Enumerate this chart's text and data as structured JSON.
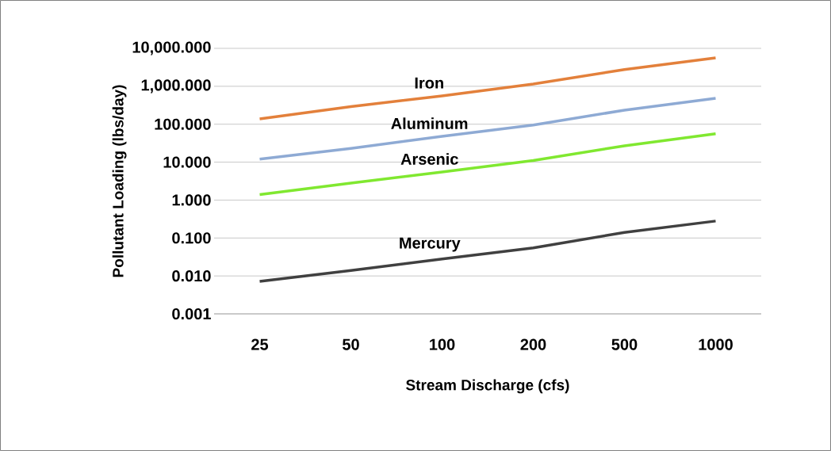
{
  "chart_data": {
    "type": "line",
    "xlabel": "Stream Discharge (cfs)",
    "ylabel": "Pollutant  Loading (lbs/day)",
    "categories": [
      "25",
      "50",
      "100",
      "200",
      "500",
      "1000"
    ],
    "series": [
      {
        "name": "Iron",
        "color": "#e3803b",
        "values": [
          138,
          290,
          560,
          1150,
          2750,
          5600
        ]
      },
      {
        "name": "Aluminum",
        "color": "#8eaad4",
        "values": [
          12,
          23,
          48,
          95,
          235,
          480
        ]
      },
      {
        "name": "Arsenic",
        "color": "#80e830",
        "values": [
          1.4,
          2.8,
          5.5,
          11,
          27,
          56
        ]
      },
      {
        "name": "Mercury",
        "color": "#404040",
        "values": [
          0.0072,
          0.014,
          0.028,
          0.055,
          0.14,
          0.28
        ]
      }
    ],
    "log": "y",
    "ylim": [
      0.001,
      10000
    ],
    "yticks": [
      {
        "value": 0.001,
        "label": "0.001"
      },
      {
        "value": 0.01,
        "label": "0.010"
      },
      {
        "value": 0.1,
        "label": "0.100"
      },
      {
        "value": 1,
        "label": "1.000"
      },
      {
        "value": 10,
        "label": "10.000"
      },
      {
        "value": 100,
        "label": "100.000"
      },
      {
        "value": 1000,
        "label": "1,000.000"
      },
      {
        "value": 10000,
        "label": "10,000.000"
      }
    ],
    "grid": "y",
    "marker": "none",
    "line_style": "solid"
  }
}
